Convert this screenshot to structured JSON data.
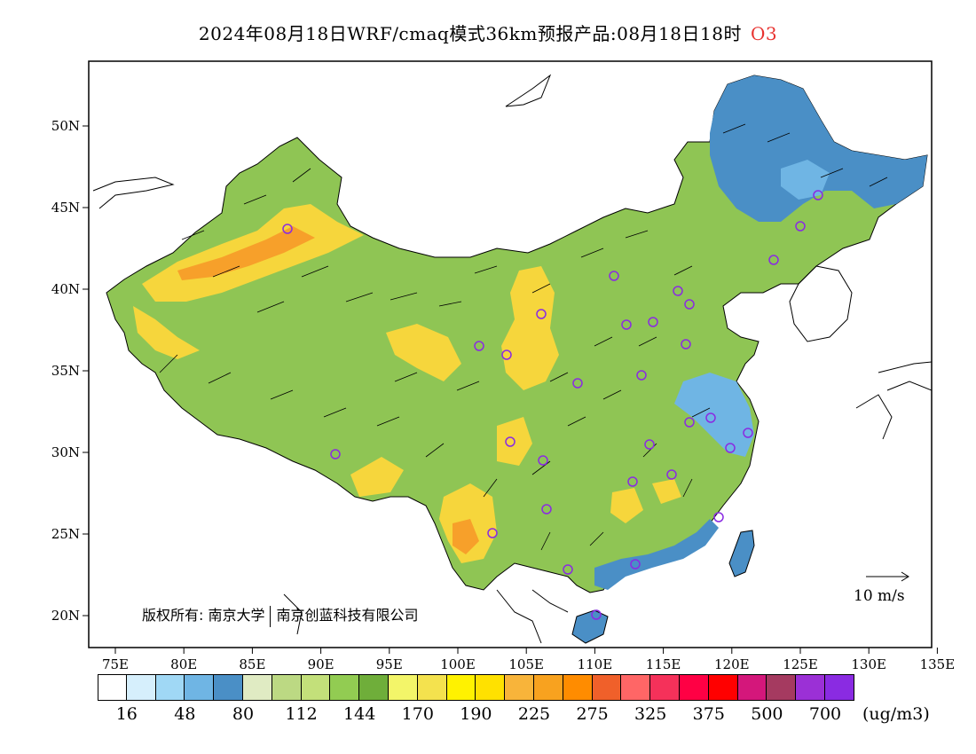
{
  "header": {
    "title": "2024年08月18日WRF/cmaq模式36km预报产品:08月18日18时",
    "species": "O3"
  },
  "axes": {
    "x_ticks": [
      "75E",
      "80E",
      "85E",
      "90E",
      "95E",
      "100E",
      "105E",
      "110E",
      "115E",
      "120E",
      "125E",
      "130E",
      "135E"
    ],
    "y_ticks": [
      "20N",
      "25N",
      "30N",
      "35N",
      "40N",
      "45N",
      "50N"
    ]
  },
  "credit": {
    "left": "版权所有: 南京大学",
    "right": "南京创蓝科技有限公司"
  },
  "wind_scale": {
    "label": "10 m/s"
  },
  "colorbar": {
    "colors": [
      "#ffffff",
      "#d6effc",
      "#a0d8f5",
      "#6fb5e4",
      "#4a8fc6",
      "#e0ebc3",
      "#bcd983",
      "#c3e07a",
      "#92cc52",
      "#6fae3a",
      "#f3f569",
      "#f4e24e",
      "#fff200",
      "#ffe100",
      "#f8b43a",
      "#f8a21f",
      "#ff8c00",
      "#f0602a",
      "#ff6666",
      "#f5315a",
      "#ff0044",
      "#ff0000",
      "#d4177b",
      "#a53a60",
      "#9b30d6",
      "#8a2be2"
    ],
    "labels": [
      "16",
      "48",
      "80",
      "112",
      "144",
      "170",
      "190",
      "225",
      "275",
      "325",
      "375",
      "500",
      "700"
    ],
    "unit": "(ug/m3)"
  }
}
